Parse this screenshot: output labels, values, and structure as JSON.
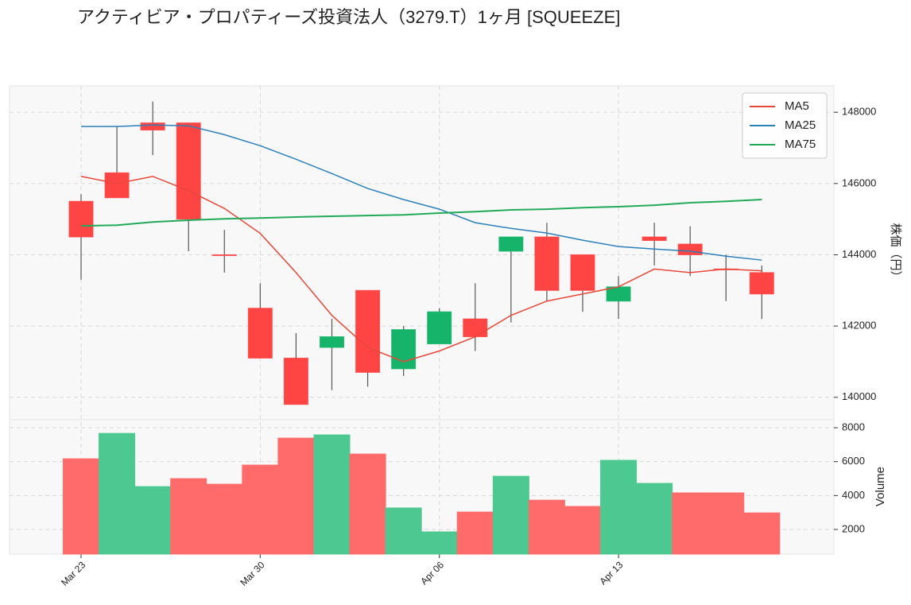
{
  "chart_data": {
    "type": "candlestick",
    "title": "アクティビア・プロパティーズ投資法人（3279.T）1ヶ月 [SQUEEZE]",
    "categories": [
      "Mar 23",
      null,
      null,
      null,
      null,
      "Mar 30",
      null,
      null,
      null,
      null,
      "Apr 06",
      null,
      null,
      null,
      null,
      "Apr 13",
      null,
      null,
      null,
      null
    ],
    "open": [
      145500,
      146300,
      147700,
      147700,
      144000,
      142500,
      141100,
      141400,
      143000,
      140800,
      141500,
      142200,
      144100,
      144500,
      144000,
      142700,
      144500,
      144300,
      143600,
      143500
    ],
    "high": [
      145700,
      147600,
      148300,
      147700,
      144700,
      143200,
      141800,
      142200,
      143000,
      142000,
      142500,
      143200,
      144500,
      144900,
      144000,
      143400,
      144900,
      144800,
      144000,
      143700
    ],
    "low": [
      143300,
      145600,
      146800,
      144100,
      143500,
      141100,
      139800,
      140200,
      140300,
      140600,
      141500,
      141300,
      142100,
      142700,
      142400,
      142200,
      143700,
      143400,
      142700,
      142200
    ],
    "close": [
      144500,
      145600,
      147500,
      145000,
      144000,
      141100,
      139800,
      141700,
      140700,
      141900,
      142400,
      141700,
      144500,
      143000,
      143000,
      143100,
      144400,
      144000,
      143600,
      142900
    ],
    "up_color": "#16b36a",
    "down_color": "#ff4444",
    "series": [
      {
        "name": "MA5",
        "color": "#e8483a",
        "values": [
          146200,
          146000,
          146200,
          145800,
          145300,
          144600,
          143500,
          142300,
          141400,
          141000,
          141300,
          141700,
          142300,
          142700,
          142900,
          143100,
          143600,
          143500,
          143600,
          143550
        ]
      },
      {
        "name": "MA25",
        "color": "#2c80b8",
        "values": [
          147600,
          147600,
          147640,
          147620,
          147370,
          147060,
          146680,
          146280,
          145860,
          145550,
          145280,
          144900,
          144740,
          144610,
          144410,
          144230,
          144160,
          144100,
          143960,
          143850
        ]
      },
      {
        "name": "MA75",
        "color": "#22aa5a",
        "values": [
          144810,
          144830,
          144920,
          144970,
          145010,
          145030,
          145060,
          145080,
          145100,
          145120,
          145170,
          145210,
          145260,
          145280,
          145320,
          145350,
          145390,
          145460,
          145500,
          145550
        ]
      }
    ],
    "ylabel": "株価（円）",
    "ylim": [
      139370,
      148740
    ],
    "yticks": [
      140000,
      142000,
      144000,
      146000,
      148000
    ],
    "grid": true,
    "legend": "upper right",
    "volume": {
      "ylabel": "Volume",
      "values": [
        6170,
        7670,
        4530,
        5000,
        4670,
        5800,
        7390,
        7580,
        6450,
        3270,
        1860,
        3030,
        5140,
        3730,
        3360,
        6080,
        4720,
        4160,
        4160,
        2980
      ],
      "up_color": "#4cc890",
      "down_color": "#ff6b6b",
      "ylim": [
        545,
        8470
      ],
      "yticks": [
        2000,
        4000,
        6000,
        8000
      ]
    }
  }
}
